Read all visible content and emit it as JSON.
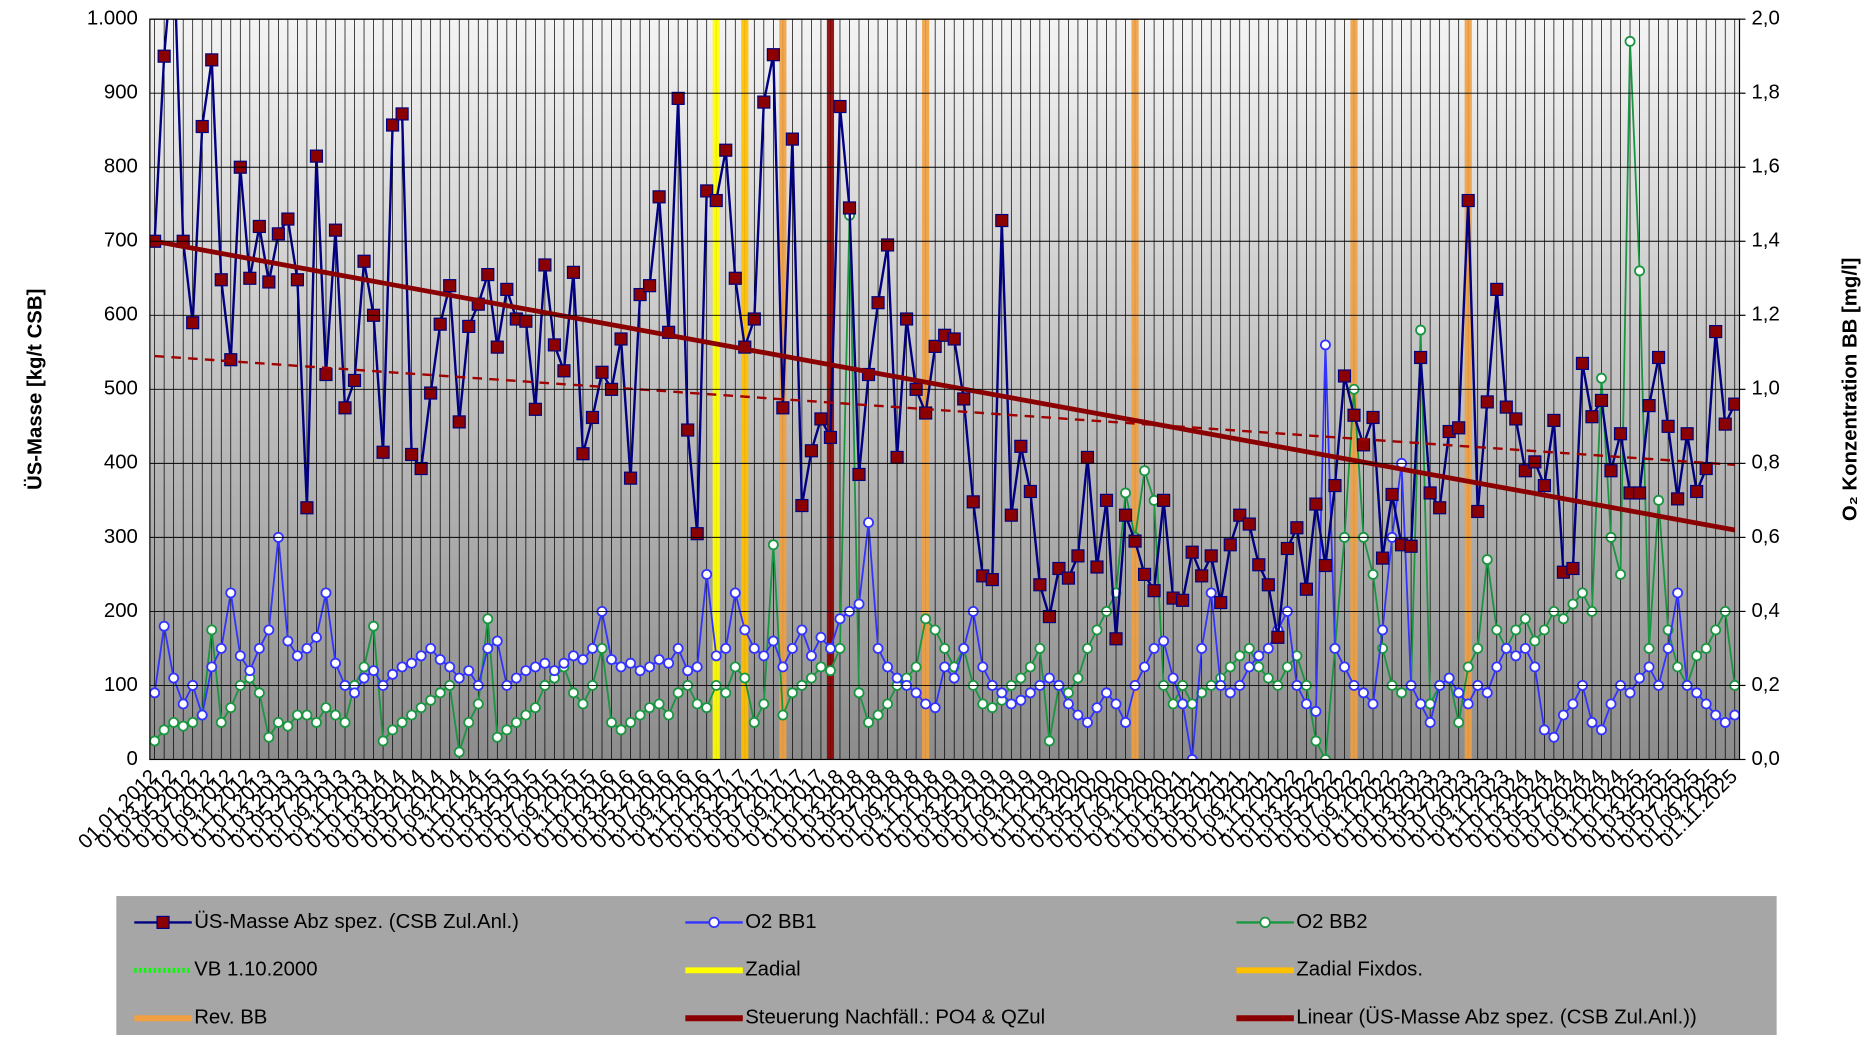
{
  "chart_data": {
    "type": "line",
    "y_label": "ÜS-Masse [kg/t CSB]",
    "y2_label": "O₂ Konzentration BB [mg/l]",
    "ylim": [
      0,
      1000
    ],
    "yticks": [
      0,
      100,
      200,
      300,
      400,
      500,
      600,
      700,
      800,
      900,
      {
        "value": 1000,
        "label": "1.000"
      }
    ],
    "y2lim": [
      0,
      2
    ],
    "y2ticks": [
      {
        "value": 0,
        "label": "0,0"
      },
      {
        "value": 0.2,
        "label": "0,2"
      },
      {
        "value": 0.4,
        "label": "0,4"
      },
      {
        "value": 0.6,
        "label": "0,6"
      },
      {
        "value": 0.8,
        "label": "0,8"
      },
      {
        "value": 1,
        "label": "1,0"
      },
      {
        "value": 1.2,
        "label": "1,2"
      },
      {
        "value": 1.4,
        "label": "1,4"
      },
      {
        "value": 1.6,
        "label": "1,6"
      },
      {
        "value": 1.8,
        "label": "1,8"
      },
      {
        "value": 2,
        "label": "2,0"
      }
    ],
    "grid": true,
    "categories": [
      "01.01.2012",
      null,
      "01.03.2012",
      null,
      "01.05.2012",
      null,
      "01.07.2012",
      null,
      "01.09.2012",
      null,
      "01.11.2012",
      null,
      "01.01.2013",
      null,
      "01.03.2013",
      null,
      "01.05.2013",
      null,
      "01.07.2013",
      null,
      "01.09.2013",
      null,
      "01.11.2013",
      null,
      "01.01.2014",
      null,
      "01.03.2014",
      null,
      "01.05.2014",
      null,
      "01.07.2014",
      null,
      "01.09.2014",
      null,
      "01.11.2014",
      null,
      "01.01.2015",
      null,
      "01.03.2015",
      null,
      "01.05.2015",
      null,
      "01.07.2015",
      null,
      "01.09.2015",
      null,
      "01.11.2015",
      null,
      "01.01.2016",
      null,
      "01.03.2016",
      null,
      "01.05.2016",
      null,
      "01.07.2016",
      null,
      "01.09.2016",
      null,
      "01.11.2016",
      null,
      "01.01.2017",
      null,
      "01.03.2017",
      null,
      "01.05.2017",
      null,
      "01.07.2017",
      null,
      "01.09.2017",
      null,
      "01.11.2017",
      null,
      "01.01.2018",
      null,
      "01.03.2018",
      null,
      "01.05.2018",
      null,
      "01.07.2018",
      null,
      "01.09.2018",
      null,
      "01.11.2018",
      null,
      "01.01.2019",
      null,
      "01.03.2019",
      null,
      "01.05.2019",
      null,
      "01.07.2019",
      null,
      "01.09.2019",
      null,
      "01.11.2019",
      null,
      "01.01.2020",
      null,
      "01.03.2020",
      null,
      "01.05.2020",
      null,
      "01.07.2020",
      null,
      "01.09.2020",
      null,
      "01.11.2020",
      null,
      "01.01.2021",
      null,
      "01.03.2021",
      null,
      "01.05.2021",
      null,
      "01.07.2021",
      null,
      "01.09.2021",
      null,
      "01.11.2021",
      null,
      "01.01.2022",
      null,
      "01.03.2022",
      null,
      "01.05.2022",
      null,
      "01.07.2022",
      null,
      "01.09.2022",
      null,
      "01.11.2022",
      null,
      "01.01.2023",
      null,
      "01.03.2023",
      null,
      "01.05.2023",
      null,
      "01.07.2023",
      null,
      "01.09.2023",
      null,
      "01.11.2023",
      null,
      "01.01.2024",
      null,
      "01.03.2024",
      null,
      "01.05.2024",
      null,
      "01.07.2024",
      null,
      "01.09.2024",
      null,
      "01.11.2024",
      null,
      "01.01.2025",
      null,
      "01.03.2025",
      null,
      "01.05.2025",
      null,
      "01.07.2025",
      null,
      "01.09.2025",
      null,
      "01.11.2025"
    ],
    "series": [
      {
        "name": "ÜS-Masse Abz spez. (CSB Zul.Anl.)",
        "color": "#000080",
        "marker": "square",
        "marker_color": "#8b0000",
        "values": [
          700,
          950,
          1100,
          700,
          590,
          855,
          945,
          648,
          540,
          800,
          650,
          720,
          645,
          710,
          730,
          648,
          340,
          815,
          520,
          715,
          475,
          512,
          673,
          600,
          415,
          857,
          872,
          412,
          393,
          495,
          588,
          640,
          456,
          585,
          615,
          655,
          557,
          635,
          595,
          592,
          473,
          668,
          560,
          525,
          658,
          413,
          462,
          523,
          500,
          568,
          380,
          628,
          640,
          760,
          577,
          893,
          445,
          305,
          768,
          755,
          823,
          650,
          557,
          595,
          888,
          952,
          475,
          838,
          343,
          417,
          460,
          435,
          882,
          745,
          385,
          520,
          617,
          695,
          408,
          595,
          500,
          468,
          558,
          573,
          568,
          487,
          348,
          248,
          243,
          728,
          330,
          423,
          362,
          236,
          193,
          258,
          245,
          275,
          408,
          260,
          350,
          163,
          330,
          295,
          250,
          228,
          350,
          218,
          215,
          280,
          248,
          275,
          212,
          290,
          330,
          318,
          263,
          236,
          165,
          285,
          313,
          230,
          345,
          262,
          370,
          518,
          465,
          425,
          462,
          272,
          358,
          290,
          288,
          543,
          360,
          340,
          443,
          448,
          755,
          335,
          483,
          635,
          476,
          460,
          390,
          402,
          370,
          458,
          253,
          258,
          535,
          463,
          485,
          390,
          440,
          360,
          360,
          478,
          543,
          450,
          352,
          440,
          362,
          393,
          578,
          453,
          480
        ]
      },
      {
        "name": "O2 BB1",
        "color": "#3333ff",
        "marker": "circle",
        "axis": "y2",
        "values": [
          0.18,
          0.36,
          0.22,
          0.15,
          0.2,
          0.12,
          0.25,
          0.3,
          0.45,
          0.28,
          0.24,
          0.3,
          0.35,
          0.6,
          0.32,
          0.28,
          0.3,
          0.33,
          0.45,
          0.26,
          0.2,
          0.18,
          0.22,
          0.24,
          0.2,
          0.23,
          0.25,
          0.26,
          0.28,
          0.3,
          0.27,
          0.25,
          0.22,
          0.24,
          0.2,
          0.3,
          0.32,
          0.2,
          0.22,
          0.24,
          0.25,
          0.26,
          0.24,
          0.26,
          0.28,
          0.27,
          0.3,
          0.4,
          0.27,
          0.25,
          0.26,
          0.24,
          0.25,
          0.27,
          0.26,
          0.3,
          0.24,
          0.25,
          0.5,
          0.28,
          0.3,
          0.45,
          0.35,
          0.3,
          0.28,
          0.32,
          0.25,
          0.3,
          0.35,
          0.28,
          0.33,
          0.3,
          0.38,
          0.4,
          0.42,
          0.64,
          0.3,
          0.25,
          0.22,
          0.2,
          0.18,
          0.15,
          0.14,
          0.25,
          0.22,
          0.3,
          0.4,
          0.25,
          0.2,
          0.18,
          0.15,
          0.16,
          0.18,
          0.2,
          0.22,
          0.2,
          0.15,
          0.12,
          0.1,
          0.14,
          0.18,
          0.15,
          0.1,
          0.2,
          0.25,
          0.3,
          0.32,
          0.22,
          0.15,
          0,
          0.3,
          0.45,
          0.2,
          0.18,
          0.2,
          0.25,
          0.28,
          0.3,
          0.35,
          0.4,
          0.2,
          0.15,
          0.13,
          1.12,
          0.3,
          0.25,
          0.2,
          0.18,
          0.15,
          0.35,
          0.6,
          0.8,
          0.2,
          0.15,
          0.1,
          0.2,
          0.22,
          0.18,
          0.15,
          0.2,
          0.18,
          0.25,
          0.3,
          0.28,
          0.3,
          0.25,
          0.08,
          0.06,
          0.12,
          0.15,
          0.2,
          0.1,
          0.08,
          0.15,
          0.2,
          0.18,
          0.22,
          0.25,
          0.2,
          0.3,
          0.45,
          0.2,
          0.18,
          0.15,
          0.12,
          0.1,
          0.12
        ]
      },
      {
        "name": "O2 BB2",
        "color": "#1a9641",
        "marker": "circle",
        "axis": "y2",
        "values": [
          0.05,
          0.08,
          0.1,
          0.09,
          0.1,
          0.12,
          0.35,
          0.1,
          0.14,
          0.2,
          0.22,
          0.18,
          0.06,
          0.1,
          0.09,
          0.12,
          0.12,
          0.1,
          0.14,
          0.12,
          0.1,
          0.2,
          0.25,
          0.36,
          0.05,
          0.08,
          0.1,
          0.12,
          0.14,
          0.16,
          0.18,
          0.2,
          0.02,
          0.1,
          0.15,
          0.38,
          0.06,
          0.08,
          0.1,
          0.12,
          0.14,
          0.2,
          0.22,
          0.25,
          0.18,
          0.15,
          0.2,
          0.3,
          0.1,
          0.08,
          0.1,
          0.12,
          0.14,
          0.15,
          0.12,
          0.18,
          0.2,
          0.15,
          0.14,
          0.2,
          0.18,
          0.25,
          0.22,
          0.1,
          0.15,
          0.58,
          0.12,
          0.18,
          0.2,
          0.22,
          0.25,
          0.24,
          0.3,
          1.47,
          0.18,
          0.1,
          0.12,
          0.15,
          0.2,
          0.22,
          0.25,
          0.38,
          0.35,
          0.3,
          0.25,
          0.3,
          0.2,
          0.15,
          0.14,
          0.16,
          0.2,
          0.22,
          0.25,
          0.3,
          0.05,
          0.2,
          0.18,
          0.22,
          0.3,
          0.35,
          0.4,
          0.45,
          0.72,
          0.6,
          0.78,
          0.7,
          0.2,
          0.15,
          0.2,
          0.15,
          0.18,
          0.2,
          0.22,
          0.25,
          0.28,
          0.3,
          0.25,
          0.22,
          0.2,
          0.25,
          0.28,
          0.2,
          0.05,
          0,
          0.3,
          0.6,
          1,
          0.6,
          0.5,
          0.3,
          0.2,
          0.18,
          0.2,
          1.16,
          0.15,
          0.2,
          0.22,
          0.1,
          0.25,
          0.3,
          0.54,
          0.35,
          0.3,
          0.35,
          0.38,
          0.32,
          0.35,
          0.4,
          0.38,
          0.42,
          0.45,
          0.4,
          1.03,
          0.6,
          0.5,
          1.94,
          1.32,
          0.3,
          0.7,
          0.35,
          0.25,
          0.2,
          0.28,
          0.3,
          0.35,
          0.4,
          0.2
        ]
      }
    ],
    "events": [
      {
        "name": "VB 1.10.2000",
        "color": "#00ff00",
        "text_color": "#00ee00",
        "dotted": true,
        "x": []
      },
      {
        "name": "Zadial",
        "color": "#ffff00",
        "x": [
          59
        ]
      },
      {
        "name": "Zadial Fixdos.",
        "color": "#ffc000",
        "x": [
          62
        ]
      },
      {
        "name": "Rev. BB",
        "color": "#f0a040",
        "x": [
          66,
          81,
          103,
          126,
          138
        ]
      },
      {
        "name": "Steuerung Nachfäll.: PO4 & QZul",
        "color": "#8b0000",
        "x": [
          71
        ]
      }
    ],
    "trend": {
      "name": "Linear (ÜS-Masse Abz spez. (CSB Zul.Anl.))",
      "color": "#8b0000",
      "values": [
        700,
        310
      ]
    },
    "trend_dashed": {
      "color": "#a00000",
      "values": [
        545,
        398
      ]
    }
  }
}
